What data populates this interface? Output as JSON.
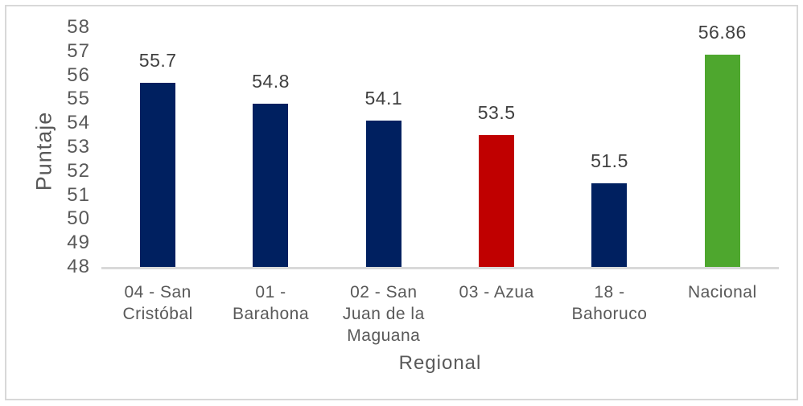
{
  "chart_data": {
    "type": "bar",
    "categories": [
      "04 - San Cristóbal",
      "01 - Barahona",
      "02 - San Juan de la Maguana",
      "03 - Azua",
      "18 - Bahoruco",
      "Nacional"
    ],
    "values": [
      55.7,
      54.8,
      54.1,
      53.5,
      51.5,
      56.86
    ],
    "value_labels": [
      "55.7",
      "54.8",
      "54.1",
      "53.5",
      "51.5",
      "56.86"
    ],
    "bar_colors": [
      "#002060",
      "#002060",
      "#002060",
      "#c00000",
      "#002060",
      "#4ea72e"
    ],
    "title": "",
    "xlabel": "Regional",
    "ylabel": "Puntaje",
    "ylim": [
      48,
      58
    ],
    "ytick_step": 1,
    "yticks": [
      48,
      49,
      50,
      51,
      52,
      53,
      54,
      55,
      56,
      57,
      58
    ],
    "grid": false,
    "legend_position": "none",
    "colors": {
      "axis_line": "#d9d9d9",
      "tick_text": "#595959",
      "data_label_text": "#404040",
      "frame_border": "#d8d8d8"
    }
  }
}
